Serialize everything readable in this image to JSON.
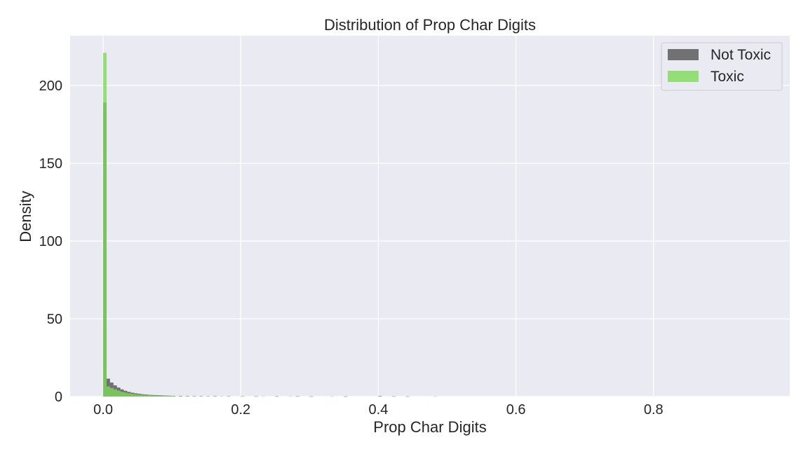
{
  "chart_data": {
    "type": "histogram",
    "title": "Distribution of Prop Char Digits",
    "xlabel": "Prop Char Digits",
    "ylabel": "Density",
    "xlim": [
      -0.048,
      0.998
    ],
    "ylim": [
      0,
      232
    ],
    "xticks": [
      0.0,
      0.2,
      0.4,
      0.6,
      0.8
    ],
    "xtick_labels": [
      "0.0",
      "0.2",
      "0.4",
      "0.6",
      "0.8"
    ],
    "yticks": [
      0,
      50,
      100,
      150,
      200
    ],
    "ytick_labels": [
      "0",
      "50",
      "100",
      "150",
      "200"
    ],
    "grid": true,
    "legend_position": "top-right",
    "bin_width": 0.005,
    "series": [
      {
        "name": "Not Toxic",
        "color": "#525252",
        "bins": [
          [
            0.0,
            189
          ],
          [
            0.005,
            11.5
          ],
          [
            0.01,
            9
          ],
          [
            0.015,
            7.2
          ],
          [
            0.02,
            5.8
          ],
          [
            0.025,
            4.6
          ],
          [
            0.03,
            3.7
          ],
          [
            0.035,
            3.0
          ],
          [
            0.04,
            2.5
          ],
          [
            0.045,
            2.1
          ],
          [
            0.05,
            1.8
          ],
          [
            0.055,
            1.5
          ],
          [
            0.06,
            1.3
          ],
          [
            0.065,
            1.1
          ],
          [
            0.07,
            1.0
          ],
          [
            0.075,
            0.9
          ],
          [
            0.08,
            0.8
          ],
          [
            0.085,
            0.7
          ],
          [
            0.09,
            0.6
          ],
          [
            0.095,
            0.5
          ],
          [
            0.1,
            0.45
          ],
          [
            0.11,
            0.4
          ],
          [
            0.12,
            0.35
          ],
          [
            0.13,
            0.3
          ],
          [
            0.14,
            0.3
          ],
          [
            0.15,
            0.25
          ],
          [
            0.16,
            0.22
          ],
          [
            0.18,
            0.2
          ],
          [
            0.2,
            0.18
          ],
          [
            0.22,
            0.15
          ],
          [
            0.25,
            0.15
          ],
          [
            0.28,
            0.15
          ],
          [
            0.3,
            0.12
          ],
          [
            0.35,
            0.1
          ],
          [
            0.4,
            0.3
          ],
          [
            0.42,
            0.15
          ],
          [
            0.44,
            0.1
          ]
        ]
      },
      {
        "name": "Toxic",
        "color": "#7ed957",
        "bins": [
          [
            0.0,
            221
          ],
          [
            0.005,
            6.5
          ],
          [
            0.01,
            5.5
          ],
          [
            0.015,
            4.6
          ],
          [
            0.02,
            3.8
          ],
          [
            0.025,
            3.1
          ],
          [
            0.03,
            2.6
          ],
          [
            0.035,
            2.1
          ],
          [
            0.04,
            1.8
          ],
          [
            0.045,
            1.5
          ],
          [
            0.05,
            1.3
          ],
          [
            0.055,
            1.1
          ],
          [
            0.06,
            0.95
          ],
          [
            0.065,
            0.85
          ],
          [
            0.07,
            0.75
          ],
          [
            0.075,
            0.65
          ],
          [
            0.08,
            0.55
          ],
          [
            0.085,
            0.5
          ],
          [
            0.09,
            0.45
          ],
          [
            0.095,
            0.4
          ],
          [
            0.1,
            0.38
          ],
          [
            0.11,
            0.33
          ],
          [
            0.12,
            0.3
          ],
          [
            0.13,
            0.27
          ],
          [
            0.14,
            0.24
          ],
          [
            0.15,
            0.22
          ],
          [
            0.17,
            0.2
          ],
          [
            0.2,
            0.18
          ],
          [
            0.23,
            0.15
          ],
          [
            0.25,
            0.3
          ],
          [
            0.27,
            0.15
          ],
          [
            0.3,
            0.2
          ],
          [
            0.33,
            0.15
          ],
          [
            0.35,
            0.15
          ],
          [
            0.48,
            0.15
          ]
        ]
      }
    ]
  }
}
